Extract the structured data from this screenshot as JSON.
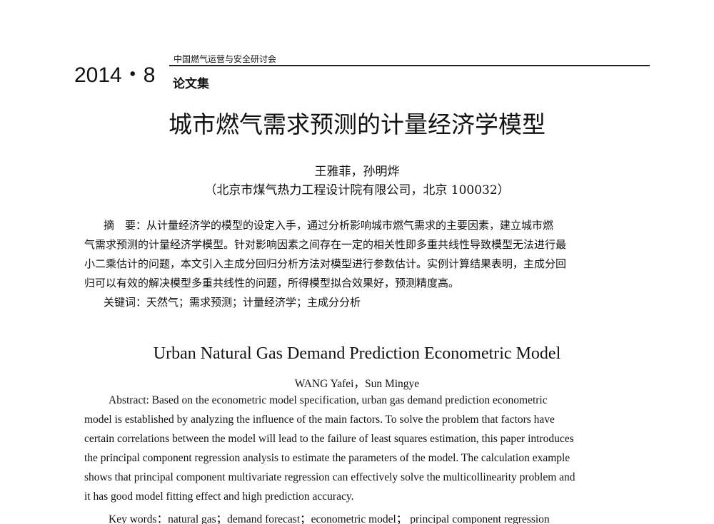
{
  "header": {
    "year_issue": "2014・8",
    "conference": "中国燃气运营与安全研讨会",
    "collection": "论文集"
  },
  "cn": {
    "title": "城市燃气需求预测的计量经济学模型",
    "authors": "王雅菲，孙明烨",
    "affiliation": "（北京市煤气热力工程设计院有限公司，北京 100032）",
    "abstract_lines": [
      "摘　要：从计量经济学的模型的设定入手，通过分析影响城市燃气需求的主要因素，建立城市燃",
      "气需求预测的计量经济学模型。针对影响因素之间存在一定的相关性即多重共线性导致模型无法进行最",
      "小二乘估计的问题，本文引入主成分回归分析方法对模型进行参数估计。实例计算结果表明，主成分回",
      "归可以有效的解决模型多重共线性的问题，所得模型拟合效果好，预测精度高。"
    ],
    "keywords": "关键词：天然气；需求预测；计量经济学；主成分分析"
  },
  "en": {
    "title": "Urban Natural Gas Demand Prediction Econometric Model",
    "authors": "WANG Yafei，Sun Mingye",
    "abstract_lines": [
      "Abstract:   Based on the econometric model specification, urban gas demand prediction econometric",
      "model is established by analyzing the influence of the main factors. To solve the problem that factors have",
      "certain correlations between the model will lead to the failure of least squares estimation, this paper introduces",
      "the principal component regression analysis to estimate the parameters of the model. The calculation example",
      "shows that principal component multivariate regression can effectively solve the multicollinearity problem and",
      "it has good model fitting effect and high prediction accuracy."
    ],
    "keywords": "Key words：natural gas；demand forecast；econometric model；   principal component regression"
  }
}
